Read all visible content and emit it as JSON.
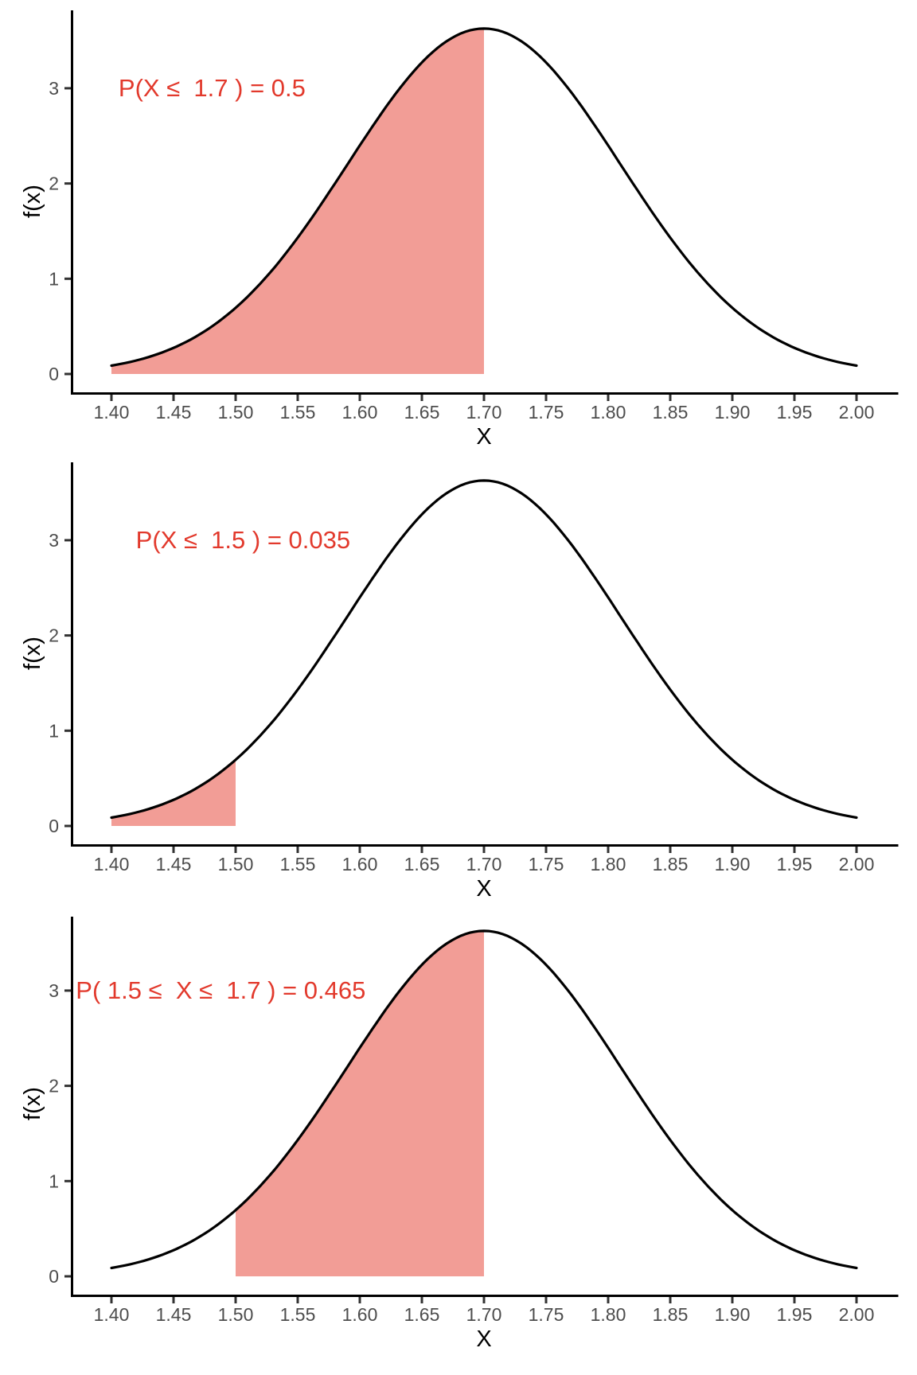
{
  "figure": {
    "description": "Three normal probability density plots with shaded probability regions",
    "background": "#FFFFFF"
  },
  "style": {
    "fill_color": "#F29D96",
    "curve_color": "#000000",
    "axis_color": "#000000",
    "tick_color": "#333333",
    "tick_label_color": "#4D4D4D",
    "annotation_color": "#E2392C"
  },
  "chart_data": [
    {
      "type": "area",
      "curve": "normal-pdf",
      "mean": 1.7,
      "sd": 0.11,
      "peak_density": 3.63,
      "x_min": 1.4,
      "x_max": 2.0,
      "xlabel": "X",
      "ylabel": "f(x)",
      "grid": false,
      "legend": false,
      "ylim": [
        -0.19,
        3.82
      ],
      "x_tick_values": [
        1.4,
        1.45,
        1.5,
        1.55,
        1.6,
        1.65,
        1.7,
        1.75,
        1.8,
        1.85,
        1.9,
        1.95,
        2.0
      ],
      "x_tick_labels": [
        "1.40",
        "1.45",
        "1.50",
        "1.55",
        "1.60",
        "1.65",
        "1.70",
        "1.75",
        "1.80",
        "1.85",
        "1.90",
        "1.95",
        "2.00"
      ],
      "y_tick_values": [
        0,
        1,
        2,
        3
      ],
      "y_tick_labels": [
        "0",
        "1",
        "2",
        "3"
      ],
      "shaded_region": {
        "from": 1.4,
        "to": 1.7,
        "probability": 0.5
      },
      "annotation": {
        "text": "P(X ≤  1.7 ) = 0.5",
        "x": 1.481,
        "y": 3.0
      }
    },
    {
      "type": "area",
      "curve": "normal-pdf",
      "mean": 1.7,
      "sd": 0.11,
      "peak_density": 3.63,
      "x_min": 1.4,
      "x_max": 2.0,
      "xlabel": "X",
      "ylabel": "f(x)",
      "grid": false,
      "legend": false,
      "ylim": [
        -0.19,
        3.82
      ],
      "x_tick_values": [
        1.4,
        1.45,
        1.5,
        1.55,
        1.6,
        1.65,
        1.7,
        1.75,
        1.8,
        1.85,
        1.9,
        1.95,
        2.0
      ],
      "x_tick_labels": [
        "1.40",
        "1.45",
        "1.50",
        "1.55",
        "1.60",
        "1.65",
        "1.70",
        "1.75",
        "1.80",
        "1.85",
        "1.90",
        "1.95",
        "2.00"
      ],
      "y_tick_values": [
        0,
        1,
        2,
        3
      ],
      "y_tick_labels": [
        "0",
        "1",
        "2",
        "3"
      ],
      "shaded_region": {
        "from": 1.4,
        "to": 1.5,
        "probability": 0.035
      },
      "annotation": {
        "text": "P(X ≤  1.5 ) = 0.035",
        "x": 1.506,
        "y": 3.0
      }
    },
    {
      "type": "area",
      "curve": "normal-pdf",
      "mean": 1.7,
      "sd": 0.11,
      "peak_density": 3.63,
      "x_min": 1.4,
      "x_max": 2.0,
      "xlabel": "X",
      "ylabel": "f(x)",
      "grid": false,
      "legend": false,
      "ylim": [
        -0.19,
        3.82
      ],
      "x_tick_values": [
        1.4,
        1.45,
        1.5,
        1.55,
        1.6,
        1.65,
        1.7,
        1.75,
        1.8,
        1.85,
        1.9,
        1.95,
        2.0
      ],
      "x_tick_labels": [
        "1.40",
        "1.45",
        "1.50",
        "1.55",
        "1.60",
        "1.65",
        "1.70",
        "1.75",
        "1.80",
        "1.85",
        "1.90",
        "1.95",
        "2.00"
      ],
      "y_tick_values": [
        0,
        1,
        2,
        3
      ],
      "y_tick_labels": [
        "0",
        "1",
        "2",
        "3"
      ],
      "shaded_region": {
        "from": 1.5,
        "to": 1.7,
        "probability": 0.465
      },
      "annotation": {
        "text": "P( 1.5 ≤  X ≤  1.7 ) = 0.465",
        "x": 1.488,
        "y": 3.0
      }
    }
  ]
}
